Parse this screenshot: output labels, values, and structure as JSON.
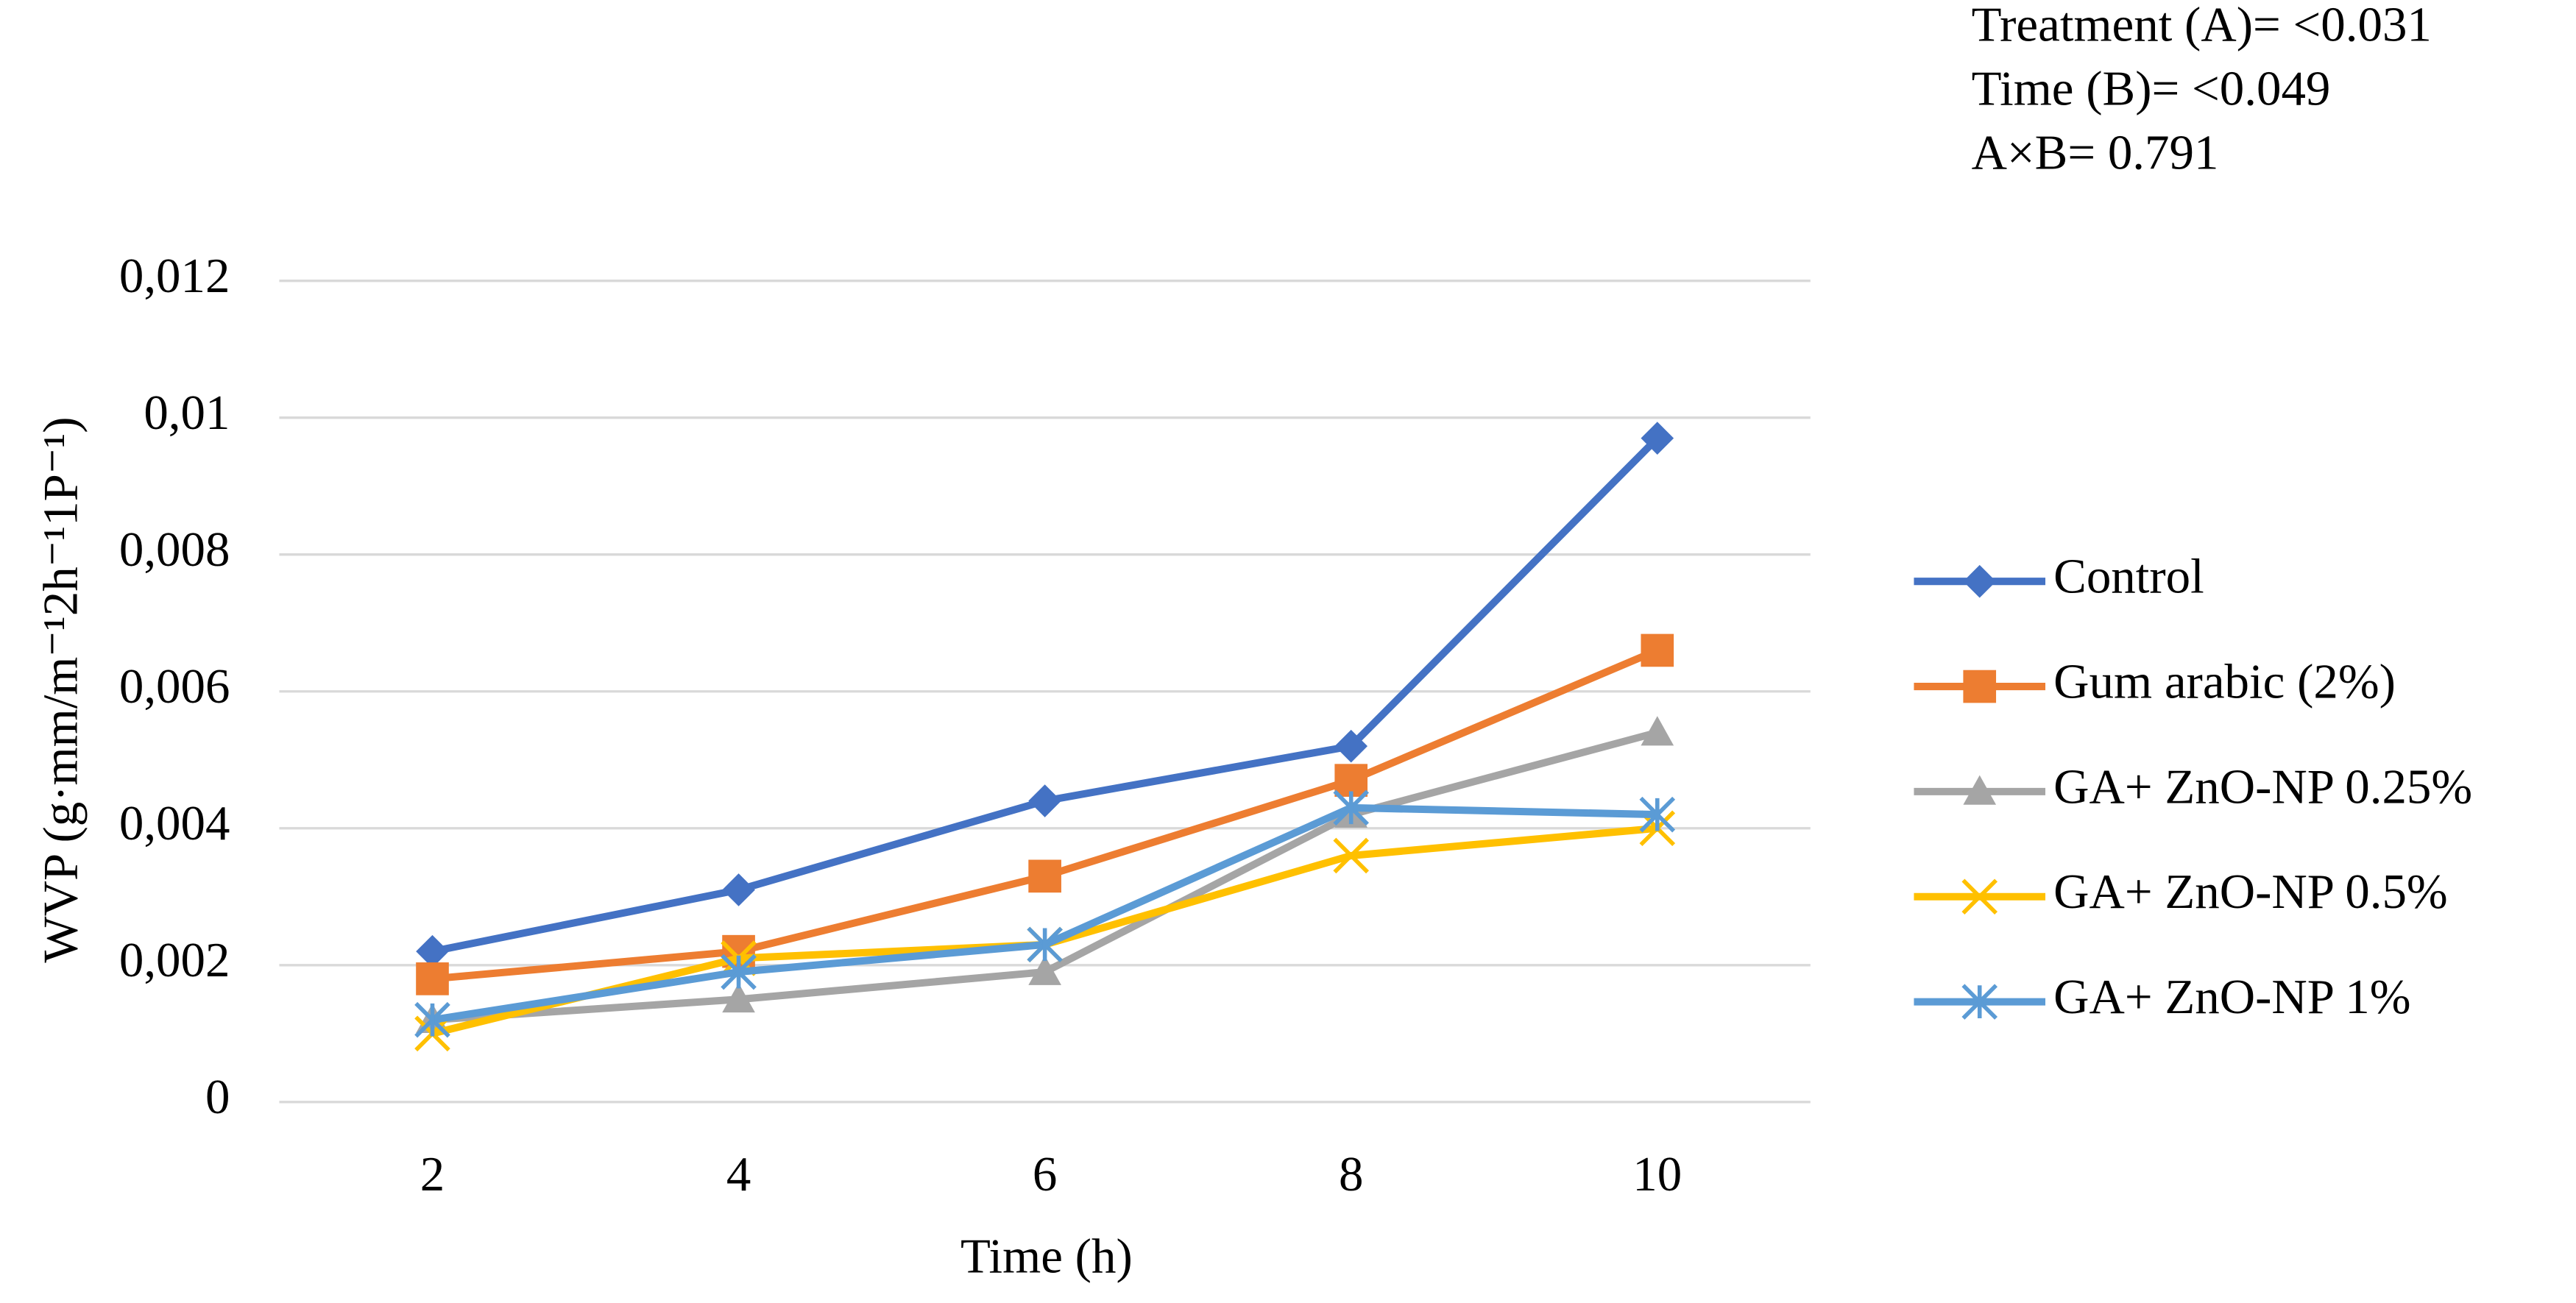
{
  "chart_data": {
    "type": "line",
    "annotations": [
      "Treatment (A)= <0.031",
      "Time (B)= <0.049",
      "A×B= 0.791"
    ],
    "y_label": "WVP (g·mm/m⁻¹2h⁻¹1P⁻¹)",
    "x_label": "Time (h)",
    "categories": [
      "2",
      "4",
      "6",
      "8",
      "10"
    ],
    "series": [
      {
        "name": "Control",
        "color": "#4472c4",
        "marker": "diamond",
        "values": [
          0.0022,
          0.0031,
          0.0044,
          0.0052,
          0.0097
        ]
      },
      {
        "name": "Gum arabic (2%)",
        "color": "#ed7d31",
        "marker": "square",
        "values": [
          0.0018,
          0.0022,
          0.0033,
          0.0047,
          0.0066
        ]
      },
      {
        "name": "GA+ ZnO-NP 0.25%",
        "color": "#a5a5a5",
        "marker": "triangle",
        "values": [
          0.0012,
          0.0015,
          0.0019,
          0.0042,
          0.0054
        ]
      },
      {
        "name": "GA+ ZnO-NP 0.5%",
        "color": "#ffc000",
        "marker": "x",
        "values": [
          0.001,
          0.0021,
          0.0023,
          0.0036,
          0.004
        ]
      },
      {
        "name": "GA+ ZnO-NP 1%",
        "color": "#5b9bd5",
        "marker": "star",
        "values": [
          0.0012,
          0.0019,
          0.0023,
          0.0043,
          0.0042
        ]
      }
    ],
    "ylim": [
      0,
      0.012
    ],
    "yticks": [
      0,
      {
        "value": 0.002,
        "label": "0,002"
      },
      {
        "value": 0.004,
        "label": "0,004"
      },
      {
        "value": 0.006,
        "label": "0,006"
      },
      {
        "value": 0.008,
        "label": "0,008"
      },
      {
        "value": 0.01,
        "label": "0,01"
      },
      {
        "value": 0.012,
        "label": "0,012"
      }
    ],
    "grid": true,
    "legend": "right"
  }
}
